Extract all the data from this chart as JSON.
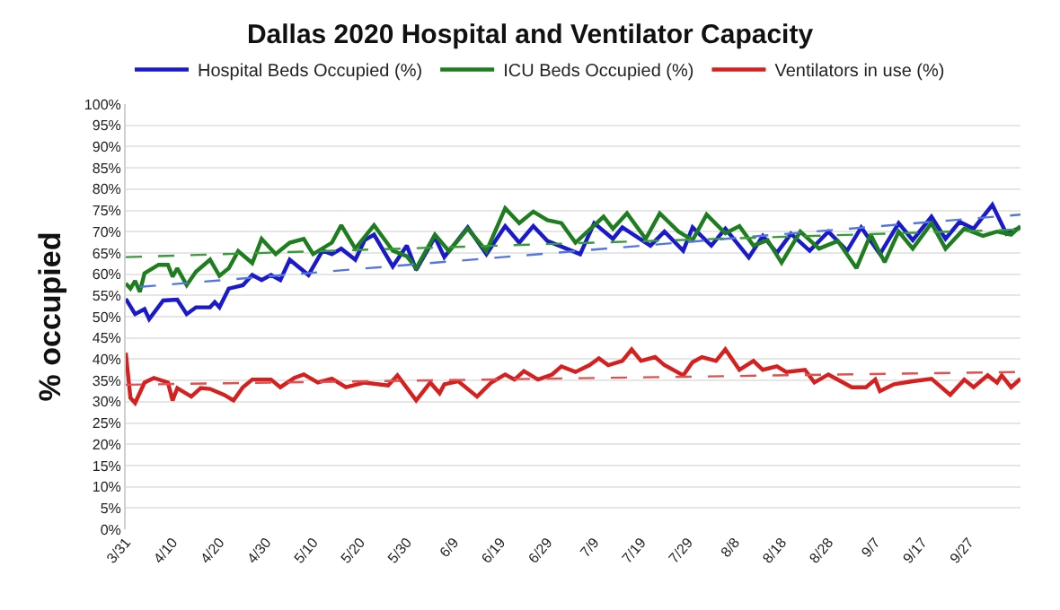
{
  "chart_data": {
    "type": "line",
    "title": "Dallas 2020 Hospital and Ventilator Capacity",
    "ylabel": "% occupied",
    "xlim": [
      "2020-03-31",
      "2020-10-08"
    ],
    "xticks": [
      {
        "value": "2020-03-31",
        "label": "3/31"
      },
      {
        "value": "2020-04-10",
        "label": "4/10"
      },
      {
        "value": "2020-04-20",
        "label": "4/20"
      },
      {
        "value": "2020-04-30",
        "label": "4/30"
      },
      {
        "value": "2020-05-10",
        "label": "5/10"
      },
      {
        "value": "2020-05-20",
        "label": "5/20"
      },
      {
        "value": "2020-05-30",
        "label": "5/30"
      },
      {
        "value": "2020-06-09",
        "label": "6/9"
      },
      {
        "value": "2020-06-19",
        "label": "6/19"
      },
      {
        "value": "2020-06-29",
        "label": "6/29"
      },
      {
        "value": "2020-07-09",
        "label": "7/9"
      },
      {
        "value": "2020-07-19",
        "label": "7/19"
      },
      {
        "value": "2020-07-29",
        "label": "7/29"
      },
      {
        "value": "2020-08-08",
        "label": "8/8"
      },
      {
        "value": "2020-08-18",
        "label": "8/18"
      },
      {
        "value": "2020-08-28",
        "label": "8/28"
      },
      {
        "value": "2020-09-07",
        "label": "9/7"
      },
      {
        "value": "2020-09-17",
        "label": "9/17"
      },
      {
        "value": "2020-09-27",
        "label": "9/27"
      }
    ],
    "ylim": [
      0,
      100
    ],
    "yticks": [
      {
        "value": 0,
        "label": "0%"
      },
      {
        "value": 5,
        "label": "5%"
      },
      {
        "value": 10,
        "label": "10%"
      },
      {
        "value": 15,
        "label": "15%"
      },
      {
        "value": 20,
        "label": "20%"
      },
      {
        "value": 25,
        "label": "25%"
      },
      {
        "value": 30,
        "label": "30%"
      },
      {
        "value": 35,
        "label": "35%"
      },
      {
        "value": 40,
        "label": "40%"
      },
      {
        "value": 45,
        "label": "45%"
      },
      {
        "value": 50,
        "label": "50%"
      },
      {
        "value": 55,
        "label": "55%"
      },
      {
        "value": 60,
        "label": "60%"
      },
      {
        "value": 65,
        "label": "65%"
      },
      {
        "value": 70,
        "label": "70%"
      },
      {
        "value": 75,
        "label": "75%"
      },
      {
        "value": 80,
        "label": "80%"
      },
      {
        "value": 85,
        "label": "85%"
      },
      {
        "value": 90,
        "label": "90%"
      },
      {
        "value": 95,
        "label": "95%"
      },
      {
        "value": 100,
        "label": "100%"
      }
    ],
    "grid": "y",
    "legend": "top left",
    "marker": "none",
    "line_style": "solid",
    "series": [
      {
        "name": "Hospital Beds Occupied (%)",
        "color": "#1a1acc",
        "x": [
          "2020-03-31",
          "2020-04-02",
          "2020-04-04",
          "2020-04-05",
          "2020-04-08",
          "2020-04-11",
          "2020-04-13",
          "2020-04-15",
          "2020-04-18",
          "2020-04-19",
          "2020-04-20",
          "2020-04-22",
          "2020-04-25",
          "2020-04-27",
          "2020-04-29",
          "2020-05-01",
          "2020-05-03",
          "2020-05-05",
          "2020-05-09",
          "2020-05-12",
          "2020-05-14",
          "2020-05-16",
          "2020-05-19",
          "2020-05-21",
          "2020-05-23",
          "2020-05-27",
          "2020-05-30",
          "2020-06-01",
          "2020-06-05",
          "2020-06-07",
          "2020-06-12",
          "2020-06-16",
          "2020-06-20",
          "2020-06-23",
          "2020-06-26",
          "2020-06-29",
          "2020-07-06",
          "2020-07-09",
          "2020-07-13",
          "2020-07-15",
          "2020-07-21",
          "2020-07-24",
          "2020-07-28",
          "2020-07-30",
          "2020-08-03",
          "2020-08-06",
          "2020-08-11",
          "2020-08-14",
          "2020-08-17",
          "2020-08-20",
          "2020-08-24",
          "2020-08-28",
          "2020-09-01",
          "2020-09-04",
          "2020-09-08",
          "2020-09-12",
          "2020-09-15",
          "2020-09-19",
          "2020-09-22",
          "2020-09-25",
          "2020-09-28",
          "2020-10-02",
          "2020-10-05",
          "2020-10-08"
        ],
        "values": [
          54.2,
          50.6,
          51.8,
          49.4,
          53.8,
          54,
          50.6,
          52.2,
          52.2,
          53.4,
          52.2,
          56.6,
          57.4,
          59.8,
          58.6,
          59.8,
          58.6,
          63.4,
          59.8,
          65.5,
          64.7,
          66,
          63.4,
          68,
          69.3,
          61.8,
          66.7,
          61,
          68.7,
          64,
          71,
          64.7,
          71.3,
          67.4,
          71.3,
          67.8,
          64.7,
          72,
          68.3,
          71,
          66.7,
          70,
          65.5,
          71,
          66.7,
          70.7,
          63.9,
          69,
          65,
          69.5,
          65.5,
          70,
          65.5,
          71,
          64.7,
          72,
          68,
          73.5,
          68.3,
          72.3,
          70.7,
          76.3,
          69.5,
          71
        ]
      },
      {
        "name": "ICU Beds Occupied (%)",
        "color": "#1e7d1e",
        "x": [
          "2020-03-31",
          "2020-04-01",
          "2020-04-02",
          "2020-04-03",
          "2020-04-04",
          "2020-04-07",
          "2020-04-09",
          "2020-04-10",
          "2020-04-11",
          "2020-04-13",
          "2020-04-15",
          "2020-04-18",
          "2020-04-20",
          "2020-04-22",
          "2020-04-24",
          "2020-04-27",
          "2020-04-29",
          "2020-05-02",
          "2020-05-05",
          "2020-05-08",
          "2020-05-10",
          "2020-05-14",
          "2020-05-16",
          "2020-05-19",
          "2020-05-23",
          "2020-05-27",
          "2020-05-30",
          "2020-06-01",
          "2020-06-05",
          "2020-06-08",
          "2020-06-12",
          "2020-06-16",
          "2020-06-20",
          "2020-06-23",
          "2020-06-26",
          "2020-06-29",
          "2020-07-02",
          "2020-07-05",
          "2020-07-11",
          "2020-07-13",
          "2020-07-16",
          "2020-07-20",
          "2020-07-23",
          "2020-07-27",
          "2020-07-30",
          "2020-08-02",
          "2020-08-06",
          "2020-08-09",
          "2020-08-12",
          "2020-08-15",
          "2020-08-18",
          "2020-08-22",
          "2020-08-26",
          "2020-08-30",
          "2020-09-03",
          "2020-09-06",
          "2020-09-09",
          "2020-09-12",
          "2020-09-15",
          "2020-09-19",
          "2020-09-22",
          "2020-09-26",
          "2020-09-30",
          "2020-10-03",
          "2020-10-06",
          "2020-10-08"
        ],
        "values": [
          57.8,
          56.6,
          58.4,
          55.8,
          60.2,
          62.2,
          62.2,
          59.4,
          61.4,
          57.4,
          60.6,
          63.4,
          59.6,
          61.4,
          65.4,
          62.6,
          68.3,
          64.7,
          67.4,
          68.3,
          64.7,
          67.4,
          71.5,
          66,
          71.5,
          65.5,
          64.2,
          61.4,
          69.3,
          65.4,
          70.7,
          65.4,
          75.5,
          72,
          74.7,
          72.7,
          72,
          67.4,
          73.5,
          70.7,
          74.3,
          68.3,
          74.3,
          70,
          68,
          74,
          69.6,
          71.3,
          66.7,
          68,
          62.7,
          70,
          66,
          67.8,
          61.4,
          69.3,
          62.8,
          70,
          66,
          72,
          66,
          70.7,
          69,
          70,
          69.3,
          71.3
        ]
      },
      {
        "name": "Ventilators in use (%)",
        "color": "#d62020",
        "x": [
          "2020-03-31",
          "2020-04-01",
          "2020-04-02",
          "2020-04-04",
          "2020-04-06",
          "2020-04-09",
          "2020-04-10",
          "2020-04-11",
          "2020-04-14",
          "2020-04-16",
          "2020-04-18",
          "2020-04-21",
          "2020-04-23",
          "2020-04-25",
          "2020-04-27",
          "2020-05-01",
          "2020-05-03",
          "2020-05-06",
          "2020-05-08",
          "2020-05-11",
          "2020-05-14",
          "2020-05-17",
          "2020-05-21",
          "2020-05-26",
          "2020-05-28",
          "2020-06-01",
          "2020-06-04",
          "2020-06-06",
          "2020-06-07",
          "2020-06-10",
          "2020-06-14",
          "2020-06-17",
          "2020-06-20",
          "2020-06-22",
          "2020-06-24",
          "2020-06-27",
          "2020-06-30",
          "2020-07-02",
          "2020-07-05",
          "2020-07-08",
          "2020-07-10",
          "2020-07-12",
          "2020-07-15",
          "2020-07-17",
          "2020-07-19",
          "2020-07-22",
          "2020-07-24",
          "2020-07-28",
          "2020-07-30",
          "2020-08-01",
          "2020-08-04",
          "2020-08-06",
          "2020-08-09",
          "2020-08-12",
          "2020-08-14",
          "2020-08-17",
          "2020-08-19",
          "2020-08-23",
          "2020-08-25",
          "2020-08-28",
          "2020-09-02",
          "2020-09-05",
          "2020-09-07",
          "2020-09-08",
          "2020-09-11",
          "2020-09-15",
          "2020-09-19",
          "2020-09-23",
          "2020-09-26",
          "2020-09-28",
          "2020-10-01",
          "2020-10-03",
          "2020-10-04",
          "2020-10-06",
          "2020-10-08"
        ],
        "values": [
          41.5,
          30.9,
          29.7,
          34.5,
          35.6,
          34.5,
          30.3,
          33.2,
          31.2,
          33.2,
          33,
          31.6,
          30.3,
          33.4,
          35.2,
          35.2,
          33.4,
          35.6,
          36.4,
          34.5,
          35.4,
          33.4,
          34.5,
          33.8,
          36.2,
          30.3,
          34.5,
          32,
          34.1,
          34.8,
          31.2,
          34.5,
          36.4,
          35.2,
          37.2,
          35.2,
          36.4,
          38.3,
          37,
          38.6,
          40.2,
          38.6,
          39.6,
          42.3,
          39.6,
          40.5,
          38.6,
          36.2,
          39.3,
          40.5,
          39.6,
          42.3,
          37.5,
          39.6,
          37.5,
          38.3,
          37,
          37.5,
          34.5,
          36.4,
          33.4,
          33.4,
          35.2,
          32.5,
          34.1,
          34.8,
          35.4,
          31.6,
          35.2,
          33.4,
          36.2,
          34.5,
          36.2,
          33.4,
          35.4
        ]
      },
      {
        "color": "#5577dd",
        "line_style": "dashed",
        "x": [
          "2020-04-03",
          "2020-10-08"
        ],
        "values": [
          57,
          74
        ]
      },
      {
        "color": "#3a9a3a",
        "line_style": "dashed",
        "x": [
          "2020-03-31",
          "2020-10-08"
        ],
        "values": [
          64,
          70.5
        ]
      },
      {
        "color": "#e05050",
        "line_style": "dashed",
        "x": [
          "2020-03-31",
          "2020-10-08"
        ],
        "values": [
          34,
          37
        ]
      }
    ]
  }
}
